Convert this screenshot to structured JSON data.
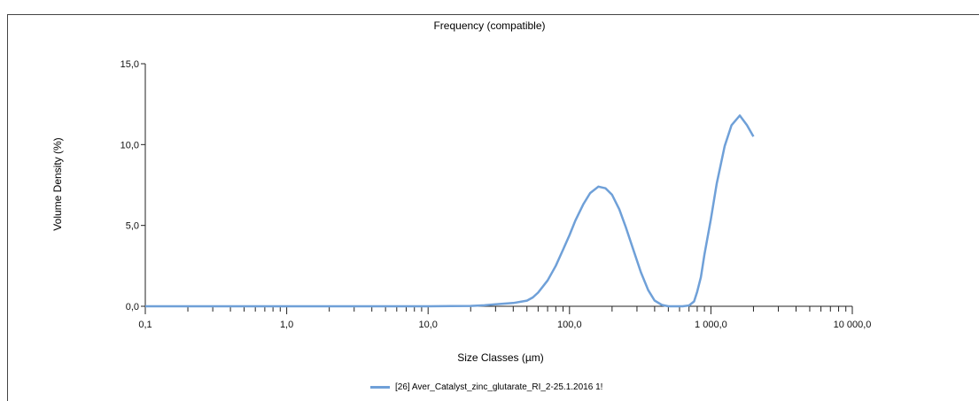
{
  "chart_data": {
    "type": "line",
    "title": "Frequency (compatible)",
    "xlabel": "Size Classes (µm)",
    "ylabel": "Volume Density (%)",
    "x_scale": "log",
    "xlim": [
      0.1,
      10000
    ],
    "ylim": [
      0,
      15
    ],
    "x_tick_labels": [
      "0,1",
      "1,0",
      "10,0",
      "100,0",
      "1 000,0",
      "10 000,0"
    ],
    "y_tick_labels": [
      "0,0",
      "5,0",
      "10,0",
      "15,0"
    ],
    "grid": false,
    "legend_position": "bottom",
    "series": [
      {
        "name": "[26] Aver_Catalyst_zinc_glutarate_RI_2-25.1.2016 1!",
        "color": "#6fa0d8",
        "x": [
          0.1,
          1,
          10,
          20,
          25,
          30,
          40,
          50,
          55,
          60,
          70,
          80,
          90,
          100,
          110,
          125,
          140,
          160,
          180,
          200,
          225,
          250,
          280,
          320,
          360,
          400,
          450,
          500,
          560,
          630,
          700,
          760,
          800,
          850,
          900,
          1000,
          1100,
          1250,
          1400,
          1600,
          1800,
          2000
        ],
        "y": [
          0,
          0,
          0,
          0.02,
          0.06,
          0.12,
          0.2,
          0.35,
          0.55,
          0.85,
          1.6,
          2.5,
          3.5,
          4.4,
          5.3,
          6.3,
          7.0,
          7.4,
          7.3,
          6.9,
          6.0,
          4.9,
          3.6,
          2.1,
          1.0,
          0.35,
          0.08,
          0.0,
          0.0,
          0.0,
          0.05,
          0.3,
          0.9,
          1.8,
          3.2,
          5.4,
          7.6,
          9.9,
          11.2,
          11.8,
          11.2,
          10.5
        ]
      }
    ]
  }
}
